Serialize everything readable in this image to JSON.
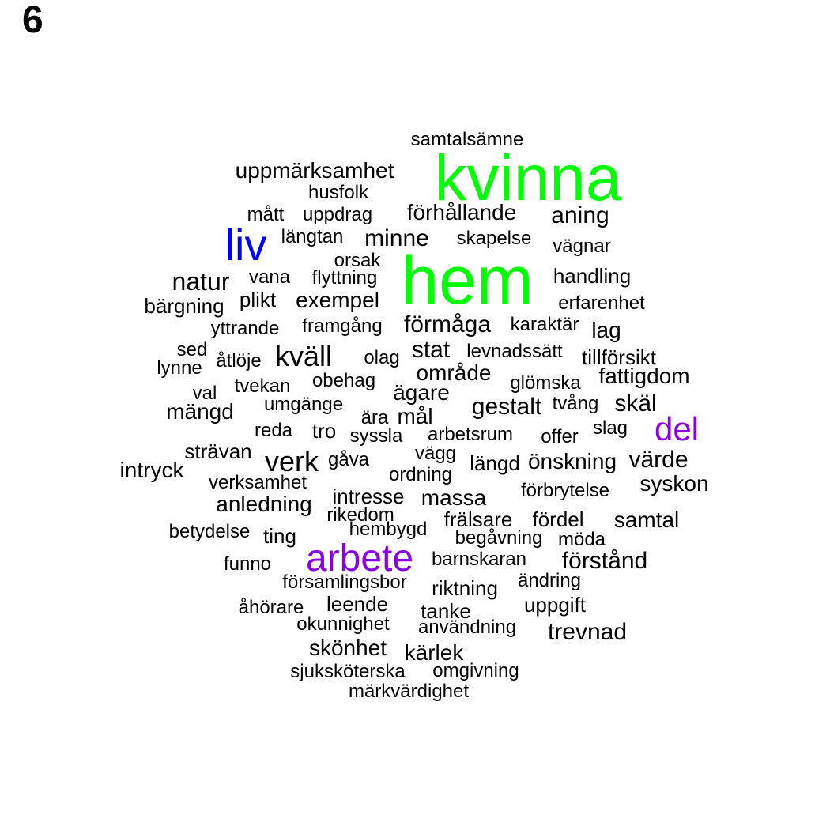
{
  "panel_label": "6",
  "colors": {
    "default": "#000000",
    "green": "#00ff00",
    "blue": "#0000ff",
    "purple": "#8a00e6"
  },
  "words": [
    {
      "text": "samtalsämne",
      "color": "default"
    },
    {
      "text": "kvinna",
      "color": "green"
    },
    {
      "text": "uppmärksamhet",
      "color": "default"
    },
    {
      "text": "husfolk",
      "color": "default"
    },
    {
      "text": "mått",
      "color": "default"
    },
    {
      "text": "uppdrag",
      "color": "default"
    },
    {
      "text": "förhållande",
      "color": "default"
    },
    {
      "text": "aning",
      "color": "default"
    },
    {
      "text": "liv",
      "color": "blue"
    },
    {
      "text": "längtan",
      "color": "default"
    },
    {
      "text": "minne",
      "color": "default"
    },
    {
      "text": "skapelse",
      "color": "default"
    },
    {
      "text": "vägnar",
      "color": "default"
    },
    {
      "text": "orsak",
      "color": "default"
    },
    {
      "text": "hem",
      "color": "green"
    },
    {
      "text": "natur",
      "color": "default"
    },
    {
      "text": "vana",
      "color": "default"
    },
    {
      "text": "flyttning",
      "color": "default"
    },
    {
      "text": "handling",
      "color": "default"
    },
    {
      "text": "bärgning",
      "color": "default"
    },
    {
      "text": "plikt",
      "color": "default"
    },
    {
      "text": "exempel",
      "color": "default"
    },
    {
      "text": "erfarenhet",
      "color": "default"
    },
    {
      "text": "yttrande",
      "color": "default"
    },
    {
      "text": "framgång",
      "color": "default"
    },
    {
      "text": "förmåga",
      "color": "default"
    },
    {
      "text": "karaktär",
      "color": "default"
    },
    {
      "text": "lag",
      "color": "default"
    },
    {
      "text": "sed",
      "color": "default"
    },
    {
      "text": "åtlöje",
      "color": "default"
    },
    {
      "text": "kväll",
      "color": "default"
    },
    {
      "text": "olag",
      "color": "default"
    },
    {
      "text": "stat",
      "color": "default"
    },
    {
      "text": "levnadssätt",
      "color": "default"
    },
    {
      "text": "tillförsikt",
      "color": "default"
    },
    {
      "text": "lynne",
      "color": "default"
    },
    {
      "text": "område",
      "color": "default"
    },
    {
      "text": "fattigdom",
      "color": "default"
    },
    {
      "text": "obehag",
      "color": "default"
    },
    {
      "text": "glömska",
      "color": "default"
    },
    {
      "text": "val",
      "color": "default"
    },
    {
      "text": "tvekan",
      "color": "default"
    },
    {
      "text": "ägare",
      "color": "default"
    },
    {
      "text": "mängd",
      "color": "default"
    },
    {
      "text": "umgänge",
      "color": "default"
    },
    {
      "text": "gestalt",
      "color": "default"
    },
    {
      "text": "tvång",
      "color": "default"
    },
    {
      "text": "skäl",
      "color": "default"
    },
    {
      "text": "ära",
      "color": "default"
    },
    {
      "text": "mål",
      "color": "default"
    },
    {
      "text": "del",
      "color": "purple"
    },
    {
      "text": "reda",
      "color": "default"
    },
    {
      "text": "tro",
      "color": "default"
    },
    {
      "text": "syssla",
      "color": "default"
    },
    {
      "text": "arbetsrum",
      "color": "default"
    },
    {
      "text": "offer",
      "color": "default"
    },
    {
      "text": "slag",
      "color": "default"
    },
    {
      "text": "strävan",
      "color": "default"
    },
    {
      "text": "vägg",
      "color": "default"
    },
    {
      "text": "verk",
      "color": "default"
    },
    {
      "text": "gåva",
      "color": "default"
    },
    {
      "text": "längd",
      "color": "default"
    },
    {
      "text": "önskning",
      "color": "default"
    },
    {
      "text": "värde",
      "color": "default"
    },
    {
      "text": "intryck",
      "color": "default"
    },
    {
      "text": "ordning",
      "color": "default"
    },
    {
      "text": "verksamhet",
      "color": "default"
    },
    {
      "text": "syskon",
      "color": "default"
    },
    {
      "text": "intresse",
      "color": "default"
    },
    {
      "text": "massa",
      "color": "default"
    },
    {
      "text": "förbrytelse",
      "color": "default"
    },
    {
      "text": "anledning",
      "color": "default"
    },
    {
      "text": "rikedom",
      "color": "default"
    },
    {
      "text": "frälsare",
      "color": "default"
    },
    {
      "text": "fördel",
      "color": "default"
    },
    {
      "text": "samtal",
      "color": "default"
    },
    {
      "text": "betydelse",
      "color": "default"
    },
    {
      "text": "hembygd",
      "color": "default"
    },
    {
      "text": "ting",
      "color": "default"
    },
    {
      "text": "begåvning",
      "color": "default"
    },
    {
      "text": "möda",
      "color": "default"
    },
    {
      "text": "arbete",
      "color": "purple"
    },
    {
      "text": "funno",
      "color": "default"
    },
    {
      "text": "barnskaran",
      "color": "default"
    },
    {
      "text": "förstånd",
      "color": "default"
    },
    {
      "text": "församlingsbor",
      "color": "default"
    },
    {
      "text": "ändring",
      "color": "default"
    },
    {
      "text": "riktning",
      "color": "default"
    },
    {
      "text": "åhörare",
      "color": "default"
    },
    {
      "text": "leende",
      "color": "default"
    },
    {
      "text": "uppgift",
      "color": "default"
    },
    {
      "text": "tanke",
      "color": "default"
    },
    {
      "text": "okunnighet",
      "color": "default"
    },
    {
      "text": "användning",
      "color": "default"
    },
    {
      "text": "trevnad",
      "color": "default"
    },
    {
      "text": "skönhet",
      "color": "default"
    },
    {
      "text": "kärlek",
      "color": "default"
    },
    {
      "text": "sjuksköterska",
      "color": "default"
    },
    {
      "text": "omgivning",
      "color": "default"
    },
    {
      "text": "märkvärdighet",
      "color": "default"
    }
  ]
}
